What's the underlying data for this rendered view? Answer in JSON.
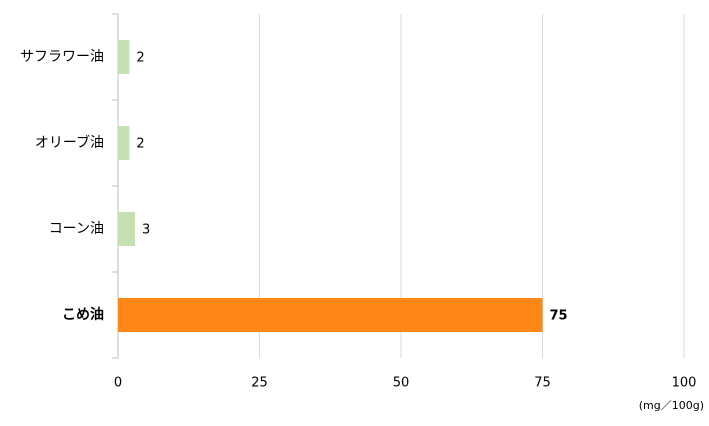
{
  "chart_data": {
    "type": "bar",
    "orientation": "horizontal",
    "categories": [
      "サフラワー油",
      "オリーブ油",
      "コーン油",
      "こめ油"
    ],
    "values": [
      2,
      2,
      3,
      75
    ],
    "colors": [
      "#c5e0b3",
      "#c5e0b3",
      "#c5e0b3",
      "#ff8717"
    ],
    "bold": [
      false,
      false,
      false,
      true
    ],
    "xlim": [
      0,
      100
    ],
    "xticks": [
      0,
      25,
      50,
      75,
      100
    ],
    "unit_label": "(mg／100g)",
    "grid": true
  }
}
